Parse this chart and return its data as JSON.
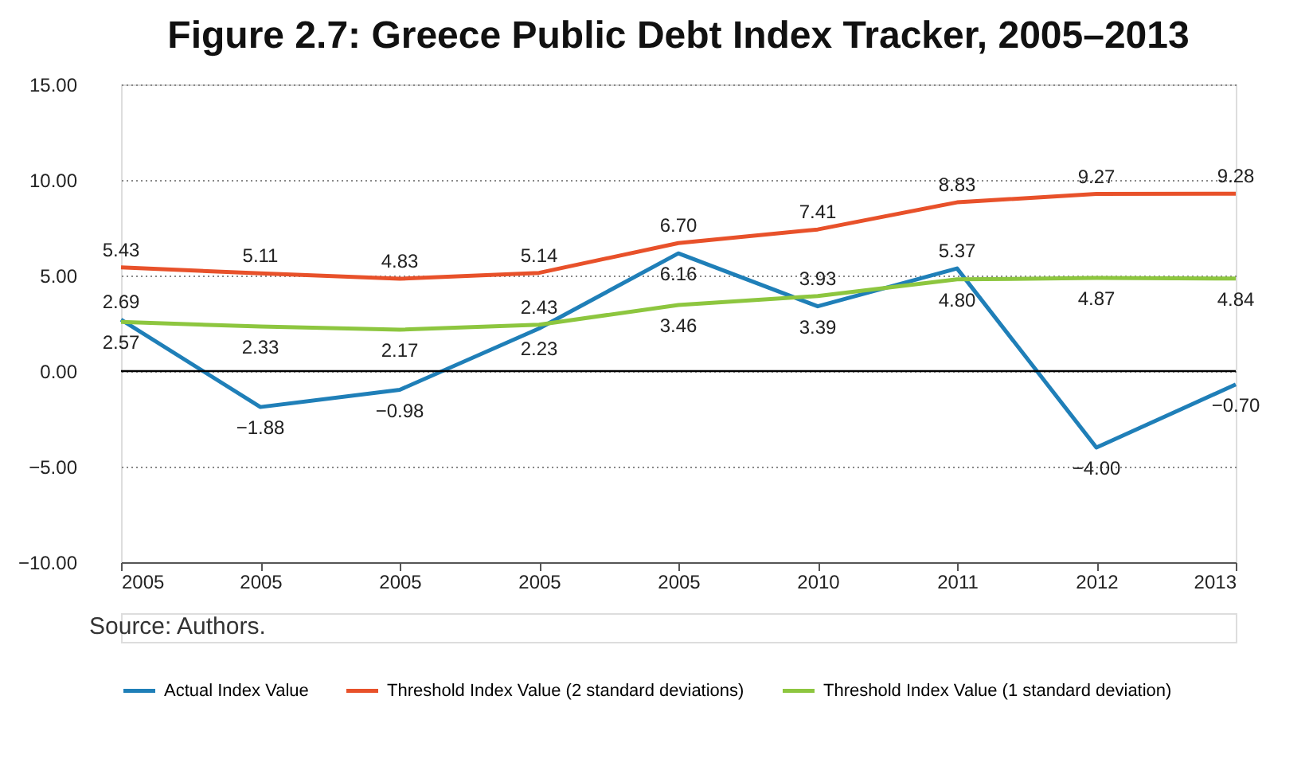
{
  "chart_data": {
    "type": "line",
    "title": "Figure 2.7: Greece Public Debt Index Tracker, 2005–2013",
    "categories": [
      "2005",
      "2005",
      "2005",
      "2005",
      "2005",
      "2010",
      "2011",
      "2012",
      "2013"
    ],
    "series": [
      {
        "name": "Actual Index Value",
        "color": "#1f7fb8",
        "values": [
          2.69,
          -1.88,
          -0.98,
          2.23,
          6.16,
          3.39,
          5.37,
          -4.0,
          -0.7
        ],
        "value_labels": [
          "2.69",
          "−1.88",
          "−0.98",
          "2.23",
          "6.16",
          "3.39",
          "5.37",
          "−4.00",
          "−0.70"
        ]
      },
      {
        "name": "Threshold Index Value (2 standard deviations)",
        "color": "#e8512a",
        "values": [
          5.43,
          5.11,
          4.83,
          5.14,
          6.7,
          7.41,
          8.83,
          9.27,
          9.28
        ],
        "value_labels": [
          "5.43",
          "5.11",
          "4.83",
          "5.14",
          "6.70",
          "7.41",
          "8.83",
          "9.27",
          "9.28"
        ]
      },
      {
        "name": "Threshold Index Value (1 standard deviation)",
        "color": "#8dc63f",
        "values": [
          2.57,
          2.33,
          2.17,
          2.43,
          3.46,
          3.93,
          4.8,
          4.87,
          4.84
        ],
        "value_labels": [
          "2.57",
          "2.33",
          "2.17",
          "2.43",
          "3.46",
          "3.93",
          "4.80",
          "4.87",
          "4.84"
        ]
      }
    ],
    "ylim": [
      -10,
      15
    ],
    "yticks": [
      {
        "value": -10,
        "label": "−10.00"
      },
      {
        "value": -5,
        "label": "−5.00"
      },
      {
        "value": 0,
        "label": "0.00"
      },
      {
        "value": 5,
        "label": "5.00"
      },
      {
        "value": 10,
        "label": "10.00"
      },
      {
        "value": 15,
        "label": "15.00"
      }
    ],
    "ref_lines": [
      {
        "axis": "y",
        "value": 0,
        "color": "#000000"
      }
    ],
    "grid": "y",
    "legend": "bottom",
    "marker": "none",
    "line_style": "solid",
    "annotations": [
      "Source: Authors."
    ]
  }
}
